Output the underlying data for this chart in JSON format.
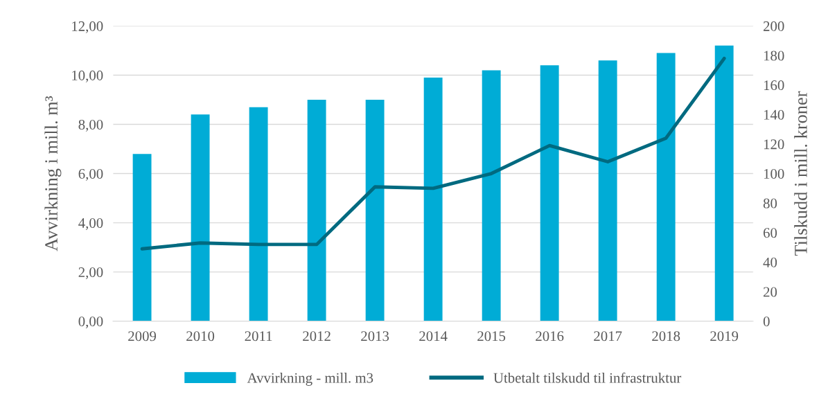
{
  "chart_data": {
    "type": "bar",
    "ylabel": "Avvirkning i mill. m³",
    "y2label": "Tilskudd i mill. kroner",
    "categories": [
      "2009",
      "2010",
      "2011",
      "2012",
      "2013",
      "2014",
      "2015",
      "2016",
      "2017",
      "2018",
      "2019"
    ],
    "series": [
      {
        "name": "Avvirkning - mill. m3",
        "color": "#00acd6",
        "values": [
          6.8,
          8.4,
          8.7,
          9.0,
          9.0,
          9.9,
          10.2,
          10.4,
          10.6,
          10.9,
          11.2
        ]
      },
      {
        "name": "Utbetalt tilskudd til infrastruktur",
        "type": "line",
        "axis": "y2",
        "color": "#006a80",
        "values": [
          49,
          53,
          52,
          52,
          91,
          90,
          100,
          119,
          108,
          124,
          178
        ]
      }
    ],
    "ylim": [
      0,
      12
    ],
    "yticks": [
      {
        "value": 0,
        "label": "0,00"
      },
      {
        "value": 2,
        "label": "2,00"
      },
      {
        "value": 4,
        "label": "4,00"
      },
      {
        "value": 6,
        "label": "6,00"
      },
      {
        "value": 8,
        "label": "8,00"
      },
      {
        "value": 10,
        "label": "10,00"
      },
      {
        "value": 12,
        "label": "12,00"
      }
    ],
    "y2lim": [
      0,
      200
    ],
    "y2ticks": [
      0,
      20,
      40,
      60,
      80,
      100,
      120,
      140,
      160,
      180,
      200
    ],
    "grid": "y",
    "legend": "bottom",
    "marker": "none",
    "line_style": "solid"
  }
}
